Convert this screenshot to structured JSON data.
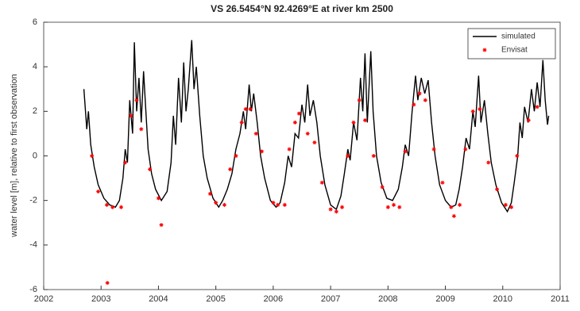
{
  "chart_data": {
    "type": "line",
    "title": "VS 26.5454°N 92.4269°E at river km 2500",
    "y_label": "water level [m], relative to first observation",
    "xlim": [
      2002,
      2011
    ],
    "xticks": [
      2002,
      2003,
      2004,
      2005,
      2006,
      2007,
      2008,
      2009,
      2010,
      2011
    ],
    "ylim": [
      -6,
      6
    ],
    "yticks": [
      -6,
      -4,
      -2,
      0,
      2,
      4,
      6
    ],
    "legend": "northeast",
    "box": true,
    "series": [
      {
        "name": "simulated",
        "color": "#000000",
        "style": "line",
        "x": [
          2002.7,
          2002.75,
          2002.78,
          2002.82,
          2002.88,
          2002.95,
          2003.05,
          2003.15,
          2003.25,
          2003.32,
          2003.38,
          2003.42,
          2003.46,
          2003.5,
          2003.55,
          2003.58,
          2003.62,
          2003.66,
          2003.7,
          2003.74,
          2003.78,
          2003.82,
          2003.88,
          2003.95,
          2004.05,
          2004.15,
          2004.22,
          2004.26,
          2004.3,
          2004.35,
          2004.4,
          2004.44,
          2004.48,
          2004.52,
          2004.58,
          2004.62,
          2004.66,
          2004.72,
          2004.78,
          2004.85,
          2004.95,
          2005.05,
          2005.12,
          2005.2,
          2005.28,
          2005.35,
          2005.42,
          2005.48,
          2005.52,
          2005.58,
          2005.62,
          2005.66,
          2005.72,
          2005.78,
          2005.85,
          2005.95,
          2006.05,
          2006.12,
          2006.2,
          2006.26,
          2006.32,
          2006.38,
          2006.44,
          2006.5,
          2006.55,
          2006.6,
          2006.64,
          2006.7,
          2006.76,
          2006.82,
          2006.9,
          2007.0,
          2007.1,
          2007.18,
          2007.24,
          2007.3,
          2007.34,
          2007.4,
          2007.46,
          2007.52,
          2007.56,
          2007.6,
          2007.64,
          2007.7,
          2007.74,
          2007.8,
          2007.88,
          2007.98,
          2008.08,
          2008.18,
          2008.25,
          2008.3,
          2008.36,
          2008.42,
          2008.48,
          2008.52,
          2008.58,
          2008.64,
          2008.7,
          2008.76,
          2008.82,
          2008.9,
          2009.0,
          2009.1,
          2009.18,
          2009.24,
          2009.3,
          2009.36,
          2009.42,
          2009.48,
          2009.52,
          2009.58,
          2009.62,
          2009.68,
          2009.74,
          2009.8,
          2009.88,
          2009.98,
          2010.08,
          2010.15,
          2010.2,
          2010.26,
          2010.3,
          2010.34,
          2010.38,
          2010.44,
          2010.5,
          2010.55,
          2010.6,
          2010.65,
          2010.7,
          2010.74,
          2010.78,
          2010.8
        ],
        "values": [
          3.0,
          1.2,
          2.0,
          0.5,
          -0.5,
          -1.3,
          -1.9,
          -2.2,
          -2.3,
          -2.0,
          -1.0,
          0.3,
          -0.3,
          2.5,
          1.0,
          5.1,
          2.0,
          3.5,
          1.5,
          3.8,
          2.0,
          0.3,
          -0.8,
          -1.5,
          -2.0,
          -1.6,
          -0.3,
          1.8,
          0.5,
          3.5,
          1.5,
          4.2,
          2.0,
          3.0,
          5.2,
          3.0,
          4.0,
          1.8,
          0.0,
          -1.0,
          -1.9,
          -2.3,
          -2.0,
          -1.5,
          -0.8,
          0.3,
          1.0,
          2.0,
          1.2,
          3.2,
          2.0,
          2.8,
          1.5,
          0.0,
          -1.0,
          -2.0,
          -2.3,
          -2.1,
          -1.2,
          0.0,
          -0.5,
          1.0,
          0.8,
          2.3,
          1.5,
          3.2,
          1.8,
          2.5,
          1.5,
          0.0,
          -1.3,
          -2.2,
          -2.4,
          -1.8,
          -0.8,
          0.3,
          -0.2,
          1.5,
          0.7,
          3.5,
          2.0,
          4.6,
          1.5,
          4.7,
          2.0,
          0.0,
          -1.2,
          -1.9,
          -2.0,
          -1.5,
          -0.5,
          0.5,
          0.0,
          2.0,
          3.6,
          2.5,
          3.5,
          2.8,
          3.4,
          1.5,
          0.0,
          -1.3,
          -2.0,
          -2.3,
          -2.2,
          -1.5,
          -0.5,
          0.8,
          0.3,
          2.0,
          1.3,
          3.6,
          1.5,
          2.5,
          1.0,
          -0.3,
          -1.3,
          -2.1,
          -2.5,
          -2.1,
          -1.2,
          0.0,
          1.5,
          0.8,
          2.2,
          1.5,
          3.0,
          2.0,
          3.3,
          2.2,
          4.3,
          2.5,
          1.4,
          1.8
        ]
      },
      {
        "name": "Envisat",
        "color": "#ff0000",
        "style": "markers",
        "x": [
          2002.84,
          2002.95,
          2003.1,
          2003.2,
          2003.35,
          2003.42,
          2003.52,
          2003.62,
          2003.7,
          2003.85,
          2004.0,
          2004.05,
          2003.11,
          2004.9,
          2005.0,
          2005.15,
          2005.25,
          2005.35,
          2005.45,
          2005.52,
          2005.6,
          2005.7,
          2005.8,
          2006.0,
          2006.08,
          2006.2,
          2006.28,
          2006.38,
          2006.45,
          2006.6,
          2006.72,
          2006.85,
          2007.0,
          2007.1,
          2007.2,
          2007.3,
          2007.4,
          2007.5,
          2007.6,
          2007.75,
          2007.9,
          2008.0,
          2008.1,
          2008.2,
          2008.3,
          2008.45,
          2008.55,
          2008.65,
          2008.8,
          2008.95,
          2009.1,
          2009.15,
          2009.25,
          2009.35,
          2009.48,
          2009.6,
          2009.75,
          2009.9,
          2010.05,
          2010.15,
          2010.25,
          2010.45,
          2010.6
        ],
        "values": [
          0.0,
          -1.6,
          -2.2,
          -2.3,
          -2.3,
          -0.3,
          1.8,
          2.5,
          1.2,
          -0.6,
          -1.9,
          -3.1,
          -5.7,
          -1.7,
          -2.1,
          -2.2,
          -0.6,
          0.0,
          1.5,
          2.1,
          2.1,
          1.0,
          0.2,
          -2.1,
          -2.2,
          -2.2,
          0.3,
          1.5,
          1.9,
          1.0,
          0.6,
          -1.2,
          -2.4,
          -2.5,
          -2.3,
          0.0,
          1.5,
          2.5,
          1.6,
          0.0,
          -1.4,
          -2.3,
          -2.2,
          -2.3,
          0.2,
          2.3,
          2.8,
          2.5,
          0.3,
          -1.2,
          -2.3,
          -2.7,
          -2.2,
          0.3,
          2.0,
          2.1,
          -0.3,
          -1.5,
          -2.2,
          -2.3,
          0.0,
          1.6,
          2.2
        ]
      }
    ]
  }
}
